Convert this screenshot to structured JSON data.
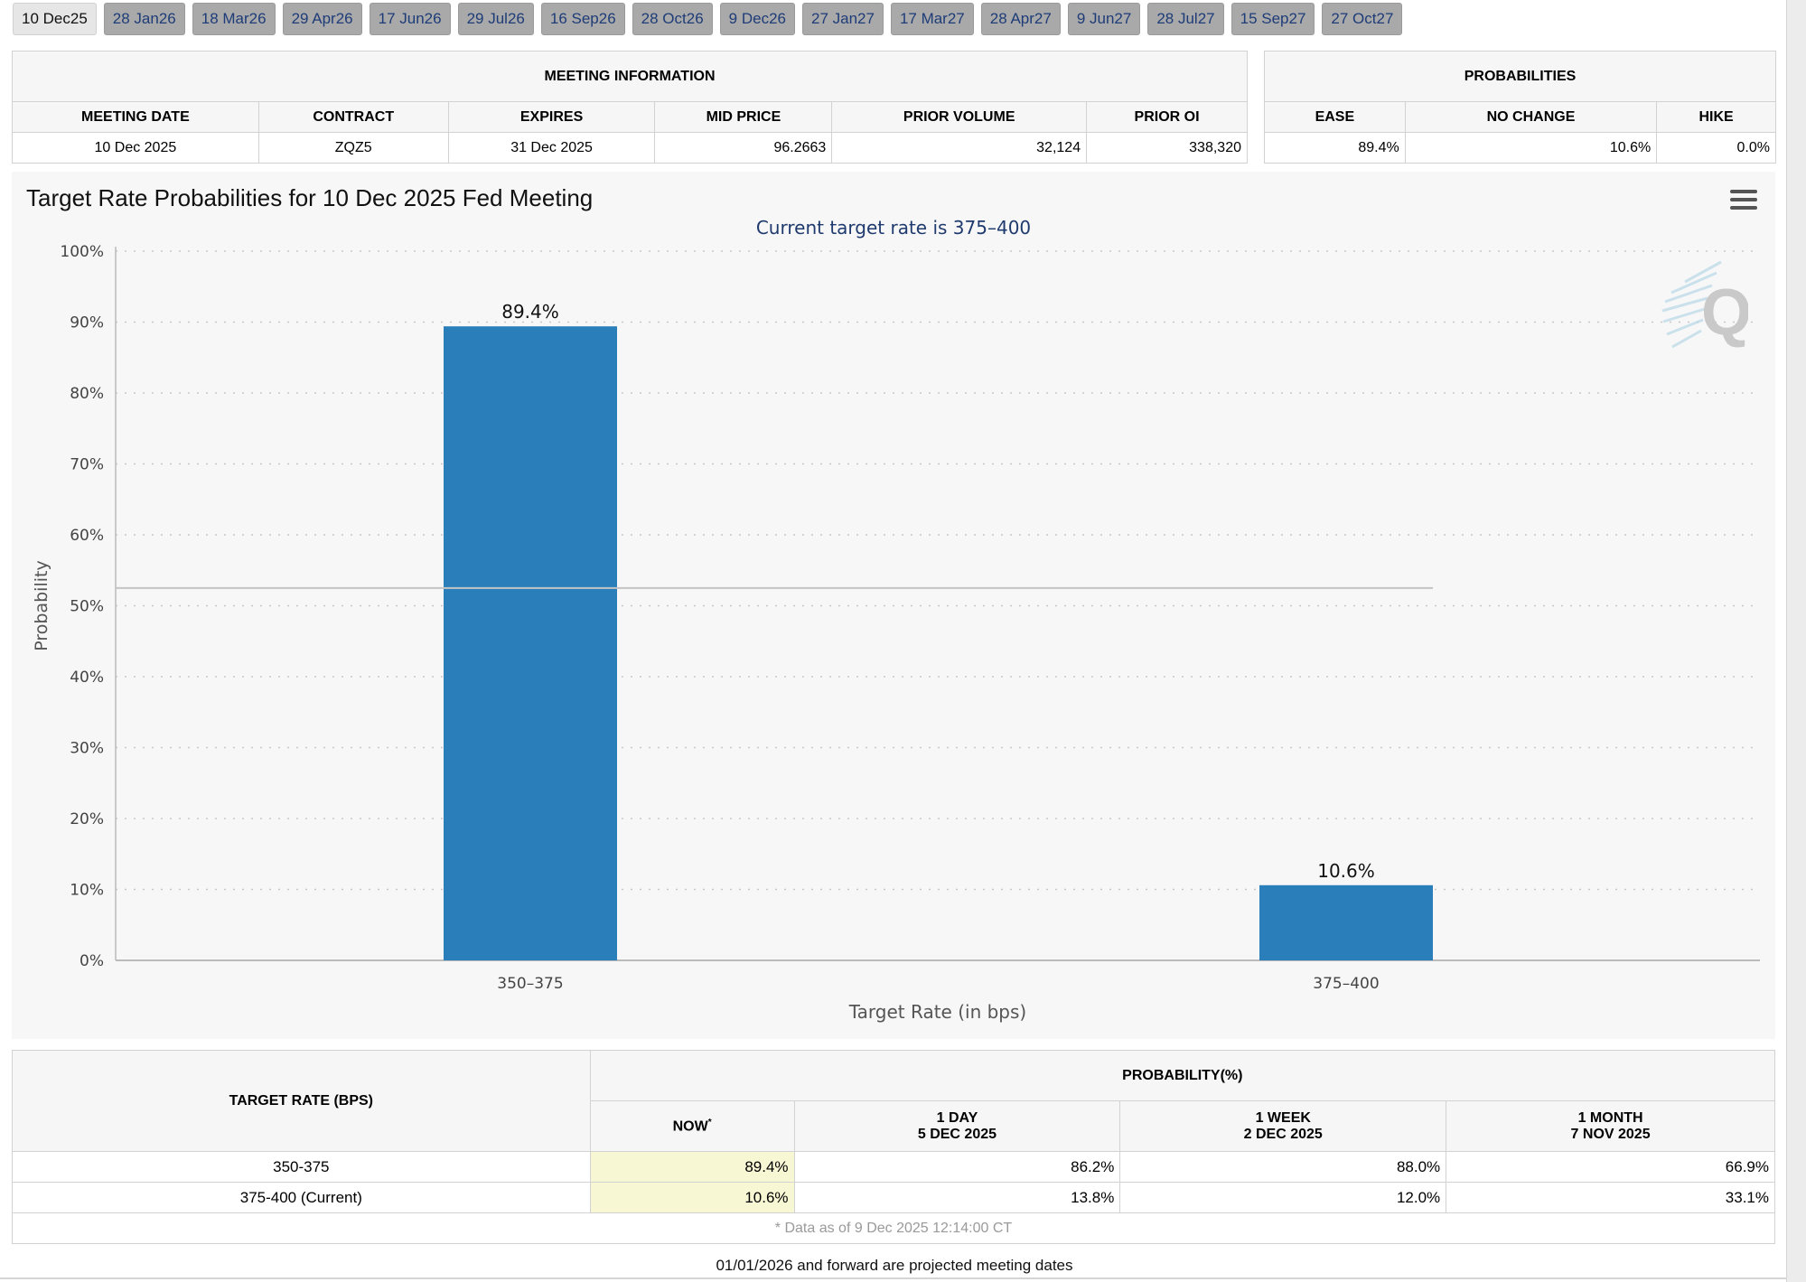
{
  "tabs": [
    "10 Dec25",
    "28 Jan26",
    "18 Mar26",
    "29 Apr26",
    "17 Jun26",
    "29 Jul26",
    "16 Sep26",
    "28 Oct26",
    "9 Dec26",
    "27 Jan27",
    "17 Mar27",
    "28 Apr27",
    "9 Jun27",
    "28 Jul27",
    "15 Sep27",
    "27 Oct27"
  ],
  "active_tab": 0,
  "meeting_info": {
    "title": "MEETING INFORMATION",
    "headers": [
      "MEETING DATE",
      "CONTRACT",
      "EXPIRES",
      "MID PRICE",
      "PRIOR VOLUME",
      "PRIOR OI"
    ],
    "row": [
      "10 Dec 2025",
      "ZQZ5",
      "31 Dec 2025",
      "96.2663",
      "32,124",
      "338,320"
    ]
  },
  "probabilities": {
    "title": "PROBABILITIES",
    "headers": [
      "EASE",
      "NO CHANGE",
      "HIKE"
    ],
    "row": [
      "89.4%",
      "10.6%",
      "0.0%"
    ]
  },
  "chart": {
    "title": "Target Rate Probabilities for 10 Dec 2025 Fed Meeting",
    "subtitle": "Current target rate is 375–400",
    "watermark_letter": "Q"
  },
  "chart_data": {
    "type": "bar",
    "title": "Target Rate Probabilities for 10 Dec 2025 Fed Meeting",
    "subtitle": "Current target rate is 375–400",
    "categories": [
      "350–375",
      "375–400"
    ],
    "values": [
      89.4,
      10.6
    ],
    "data_labels": [
      "89.4%",
      "10.6%"
    ],
    "xlabel": "Target Rate (in bps)",
    "ylabel": "Probability",
    "ylim": [
      0,
      100
    ],
    "yticks": [
      "0%",
      "10%",
      "20%",
      "30%",
      "40%",
      "50%",
      "60%",
      "70%",
      "80%",
      "90%",
      "100%"
    ],
    "grid": true,
    "bar_color": "#2a7fba",
    "reference_line_value": 52.5
  },
  "history": {
    "row_header": "TARGET RATE (BPS)",
    "group_header": "PROBABILITY(%)",
    "columns": [
      {
        "label": "NOW",
        "sup": "*",
        "sub": ""
      },
      {
        "label": "1 DAY",
        "sub": "5 DEC 2025"
      },
      {
        "label": "1 WEEK",
        "sub": "2 DEC 2025"
      },
      {
        "label": "1 MONTH",
        "sub": "7 NOV 2025"
      }
    ],
    "rows": [
      {
        "rate": "350-375",
        "values": [
          "89.4%",
          "86.2%",
          "88.0%",
          "66.9%"
        ]
      },
      {
        "rate": "375-400 (Current)",
        "values": [
          "10.6%",
          "13.8%",
          "12.0%",
          "33.1%"
        ]
      }
    ],
    "footnote": "* Data as of 9 Dec 2025 12:14:00 CT"
  },
  "bottom_note": "01/01/2026 and forward are projected meeting dates"
}
